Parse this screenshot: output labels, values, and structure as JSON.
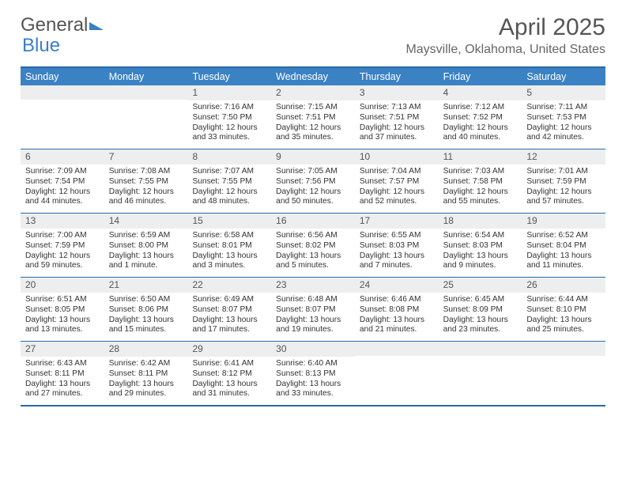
{
  "logo": {
    "part1": "General",
    "part2": "Blue"
  },
  "title": "April 2025",
  "subtitle": "Maysville, Oklahoma, United States",
  "header_bg": "#3b82c4",
  "border_color": "#2b6aa8",
  "daynum_bg": "#eceeef",
  "day_names": [
    "Sunday",
    "Monday",
    "Tuesday",
    "Wednesday",
    "Thursday",
    "Friday",
    "Saturday"
  ],
  "weeks": [
    [
      null,
      null,
      {
        "n": "1",
        "sr": "7:16 AM",
        "ss": "7:50 PM",
        "dl": "12 hours and 33 minutes."
      },
      {
        "n": "2",
        "sr": "7:15 AM",
        "ss": "7:51 PM",
        "dl": "12 hours and 35 minutes."
      },
      {
        "n": "3",
        "sr": "7:13 AM",
        "ss": "7:51 PM",
        "dl": "12 hours and 37 minutes."
      },
      {
        "n": "4",
        "sr": "7:12 AM",
        "ss": "7:52 PM",
        "dl": "12 hours and 40 minutes."
      },
      {
        "n": "5",
        "sr": "7:11 AM",
        "ss": "7:53 PM",
        "dl": "12 hours and 42 minutes."
      }
    ],
    [
      {
        "n": "6",
        "sr": "7:09 AM",
        "ss": "7:54 PM",
        "dl": "12 hours and 44 minutes."
      },
      {
        "n": "7",
        "sr": "7:08 AM",
        "ss": "7:55 PM",
        "dl": "12 hours and 46 minutes."
      },
      {
        "n": "8",
        "sr": "7:07 AM",
        "ss": "7:55 PM",
        "dl": "12 hours and 48 minutes."
      },
      {
        "n": "9",
        "sr": "7:05 AM",
        "ss": "7:56 PM",
        "dl": "12 hours and 50 minutes."
      },
      {
        "n": "10",
        "sr": "7:04 AM",
        "ss": "7:57 PM",
        "dl": "12 hours and 52 minutes."
      },
      {
        "n": "11",
        "sr": "7:03 AM",
        "ss": "7:58 PM",
        "dl": "12 hours and 55 minutes."
      },
      {
        "n": "12",
        "sr": "7:01 AM",
        "ss": "7:59 PM",
        "dl": "12 hours and 57 minutes."
      }
    ],
    [
      {
        "n": "13",
        "sr": "7:00 AM",
        "ss": "7:59 PM",
        "dl": "12 hours and 59 minutes."
      },
      {
        "n": "14",
        "sr": "6:59 AM",
        "ss": "8:00 PM",
        "dl": "13 hours and 1 minute."
      },
      {
        "n": "15",
        "sr": "6:58 AM",
        "ss": "8:01 PM",
        "dl": "13 hours and 3 minutes."
      },
      {
        "n": "16",
        "sr": "6:56 AM",
        "ss": "8:02 PM",
        "dl": "13 hours and 5 minutes."
      },
      {
        "n": "17",
        "sr": "6:55 AM",
        "ss": "8:03 PM",
        "dl": "13 hours and 7 minutes."
      },
      {
        "n": "18",
        "sr": "6:54 AM",
        "ss": "8:03 PM",
        "dl": "13 hours and 9 minutes."
      },
      {
        "n": "19",
        "sr": "6:52 AM",
        "ss": "8:04 PM",
        "dl": "13 hours and 11 minutes."
      }
    ],
    [
      {
        "n": "20",
        "sr": "6:51 AM",
        "ss": "8:05 PM",
        "dl": "13 hours and 13 minutes."
      },
      {
        "n": "21",
        "sr": "6:50 AM",
        "ss": "8:06 PM",
        "dl": "13 hours and 15 minutes."
      },
      {
        "n": "22",
        "sr": "6:49 AM",
        "ss": "8:07 PM",
        "dl": "13 hours and 17 minutes."
      },
      {
        "n": "23",
        "sr": "6:48 AM",
        "ss": "8:07 PM",
        "dl": "13 hours and 19 minutes."
      },
      {
        "n": "24",
        "sr": "6:46 AM",
        "ss": "8:08 PM",
        "dl": "13 hours and 21 minutes."
      },
      {
        "n": "25",
        "sr": "6:45 AM",
        "ss": "8:09 PM",
        "dl": "13 hours and 23 minutes."
      },
      {
        "n": "26",
        "sr": "6:44 AM",
        "ss": "8:10 PM",
        "dl": "13 hours and 25 minutes."
      }
    ],
    [
      {
        "n": "27",
        "sr": "6:43 AM",
        "ss": "8:11 PM",
        "dl": "13 hours and 27 minutes."
      },
      {
        "n": "28",
        "sr": "6:42 AM",
        "ss": "8:11 PM",
        "dl": "13 hours and 29 minutes."
      },
      {
        "n": "29",
        "sr": "6:41 AM",
        "ss": "8:12 PM",
        "dl": "13 hours and 31 minutes."
      },
      {
        "n": "30",
        "sr": "6:40 AM",
        "ss": "8:13 PM",
        "dl": "13 hours and 33 minutes."
      },
      null,
      null,
      null
    ]
  ],
  "labels": {
    "sunrise": "Sunrise: ",
    "sunset": "Sunset: ",
    "daylight": "Daylight: "
  }
}
